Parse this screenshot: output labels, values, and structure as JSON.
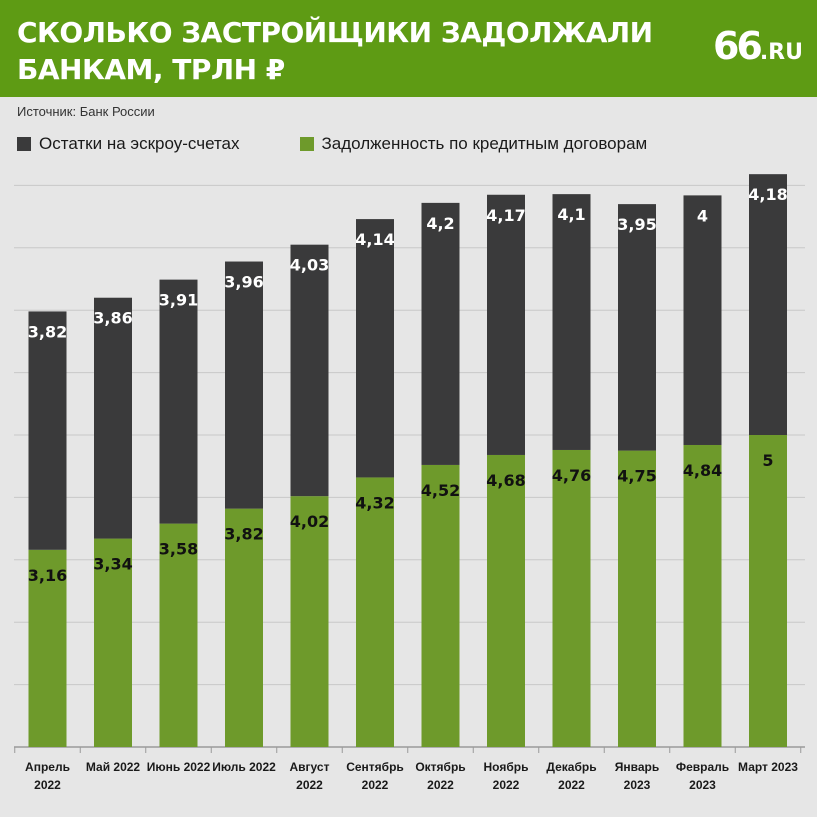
{
  "header": {
    "title_line1": "СКОЛЬКО ЗАСТРОЙЩИКИ ЗАДОЛЖАЛИ",
    "title_line2": "БАНКАМ, ТРЛН ₽",
    "logo_number": "66",
    "logo_domain": ".RU"
  },
  "source": "Источник: Банк России",
  "colors": {
    "header_bg": "#5e9b14",
    "escrow": "#3a3a3b",
    "loans": "#6e9a2b",
    "background": "#e6e6e6"
  },
  "chart_data": {
    "type": "bar",
    "stacked": true,
    "categories": [
      [
        "Апрель",
        "2022"
      ],
      [
        "Май 2022"
      ],
      [
        "Июнь 2022"
      ],
      [
        "Июль 2022"
      ],
      [
        "Август",
        "2022"
      ],
      [
        "Сентябрь",
        "2022"
      ],
      [
        "Октябрь",
        "2022"
      ],
      [
        "Ноябрь",
        "2022"
      ],
      [
        "Декабрь",
        "2022"
      ],
      [
        "Январь",
        "2023"
      ],
      [
        "Февраль",
        "2023"
      ],
      [
        "Март 2023"
      ]
    ],
    "series": [
      {
        "name": "Задолженность по кредитным договорам",
        "color": "#6e9a2b",
        "values": [
          3.16,
          3.34,
          3.58,
          3.82,
          4.02,
          4.32,
          4.52,
          4.68,
          4.76,
          4.75,
          4.84,
          5
        ],
        "labels": [
          "3,16",
          "3,34",
          "3,58",
          "3,82",
          "4,02",
          "4,32",
          "4,52",
          "4,68",
          "4,76",
          "4,75",
          "4,84",
          "5"
        ]
      },
      {
        "name": "Остатки на эскроу-счетах",
        "color": "#3a3a3b",
        "values": [
          3.82,
          3.86,
          3.91,
          3.96,
          4.03,
          4.14,
          4.2,
          4.17,
          4.1,
          3.95,
          4,
          4.18
        ],
        "labels": [
          "3,82",
          "3,86",
          "3,91",
          "3,96",
          "4,03",
          "4,14",
          "4,2",
          "4,17",
          "4,1",
          "3,95",
          "4",
          "4,18"
        ]
      }
    ],
    "ylim": [
      0,
      9
    ],
    "grid": true,
    "legend_position": "top-left"
  }
}
